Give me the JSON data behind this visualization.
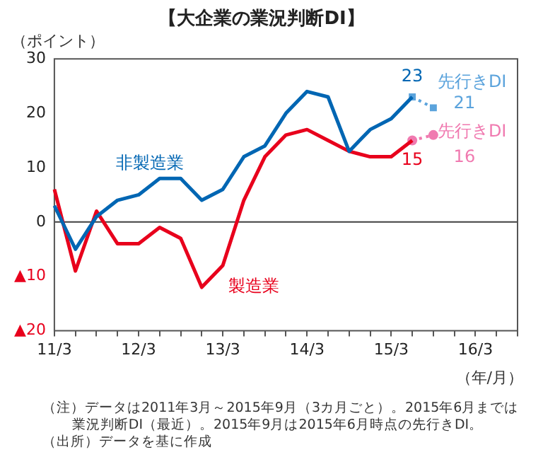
{
  "chart_data": {
    "type": "line",
    "title": "【大企業の業況判断DI】",
    "ylabel": "（ポイント）",
    "xlabel": "（年/月）",
    "categories": [
      "11/3",
      null,
      null,
      null,
      "12/3",
      null,
      null,
      null,
      "13/3",
      null,
      null,
      null,
      "14/3",
      null,
      null,
      null,
      "15/3",
      null,
      null,
      null,
      "16/3",
      null,
      null
    ],
    "series": [
      {
        "name": "非製造業",
        "color": "#0066b3",
        "marker": "none",
        "line_style": "solid",
        "values": [
          3,
          -5,
          1,
          4,
          5,
          8,
          8,
          4,
          6,
          12,
          14,
          20,
          24,
          23,
          13,
          17,
          19,
          23,
          null,
          null,
          null,
          null,
          null
        ],
        "value_labels": [
          null,
          null,
          null,
          null,
          null,
          null,
          null,
          null,
          null,
          null,
          null,
          null,
          null,
          null,
          null,
          null,
          null,
          "23",
          null,
          null,
          null,
          null,
          null
        ]
      },
      {
        "name": "製造業",
        "color": "#e8001c",
        "marker": "none",
        "line_style": "solid",
        "values": [
          6,
          -9,
          2,
          -4,
          -4,
          -1,
          -3,
          -12,
          -8,
          4,
          12,
          16,
          17,
          15,
          13,
          12,
          12,
          15,
          null,
          null,
          null,
          null,
          null
        ],
        "value_labels": [
          null,
          null,
          null,
          null,
          null,
          null,
          null,
          null,
          null,
          null,
          null,
          null,
          null,
          null,
          null,
          null,
          null,
          "15",
          null,
          null,
          null,
          null,
          null
        ]
      },
      {
        "name": "先行きDI",
        "color": "#5ba3dc",
        "marker": "square",
        "line_style": "dotted",
        "values": [
          null,
          null,
          null,
          null,
          null,
          null,
          null,
          null,
          null,
          null,
          null,
          null,
          null,
          null,
          null,
          null,
          null,
          23,
          21,
          null,
          null,
          null,
          null
        ],
        "value_labels": [
          null,
          null,
          null,
          null,
          null,
          null,
          null,
          null,
          null,
          null,
          null,
          null,
          null,
          null,
          null,
          null,
          null,
          null,
          "21",
          null,
          null,
          null,
          null
        ]
      },
      {
        "name": "先行きDI",
        "color": "#f07ab0",
        "marker": "circle",
        "line_style": "dotted",
        "values": [
          null,
          null,
          null,
          null,
          null,
          null,
          null,
          null,
          null,
          null,
          null,
          null,
          null,
          null,
          null,
          null,
          null,
          15,
          16,
          null,
          null,
          null,
          null
        ],
        "value_labels": [
          null,
          null,
          null,
          null,
          null,
          null,
          null,
          null,
          null,
          null,
          null,
          null,
          null,
          null,
          null,
          null,
          null,
          null,
          "16",
          null,
          null,
          null,
          null
        ]
      }
    ],
    "ylim": [
      -20,
      30
    ],
    "yticks": [
      30,
      20,
      10,
      0,
      {
        "value": -10,
        "label": "▲10"
      },
      {
        "value": -20,
        "label": "▲20"
      }
    ],
    "ref_lines": [
      {
        "axis": "y",
        "value": 0,
        "color": "#404040"
      }
    ],
    "grid": false,
    "legend": false,
    "annotations": [
      "（注）データは2011年3月～2015年9月（3カ月ごと）。2015年6月までは業況判断DI（最近）。2015年9月は2015年6月時点の先行きDI。",
      "（出所）データを基に作成"
    ]
  }
}
